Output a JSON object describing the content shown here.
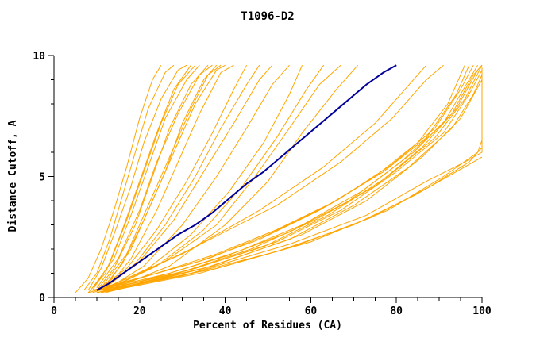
{
  "chart_data": {
    "type": "line",
    "title": "T1096-D2",
    "xlabel": "Percent of Residues (CA)",
    "ylabel": "Distance Cutoff, A",
    "xlim": [
      0,
      100
    ],
    "ylim": [
      0,
      10
    ],
    "x_major_ticks": [
      0,
      20,
      40,
      60,
      80,
      100
    ],
    "x_minor_step": 5,
    "y_major_ticks": [
      0,
      5,
      10
    ],
    "y_minor_step": 1,
    "grid": false,
    "legend": "none",
    "palette": {
      "orange": "#FFA500",
      "blue": "#000099",
      "axis": "#000000"
    },
    "series": [
      {
        "color": "orange",
        "points": [
          [
            5,
            0.2
          ],
          [
            8,
            0.8
          ],
          [
            11,
            2.0
          ],
          [
            14,
            3.6
          ],
          [
            17,
            5.4
          ],
          [
            20,
            7.4
          ],
          [
            23,
            9.0
          ],
          [
            25,
            9.6
          ]
        ]
      },
      {
        "color": "orange",
        "points": [
          [
            7,
            0.3
          ],
          [
            10,
            1.0
          ],
          [
            13,
            2.4
          ],
          [
            16,
            4.2
          ],
          [
            19,
            6.0
          ],
          [
            22,
            7.8
          ],
          [
            26,
            9.3
          ],
          [
            28,
            9.6
          ]
        ]
      },
      {
        "color": "orange",
        "points": [
          [
            8,
            0.3
          ],
          [
            11,
            1.2
          ],
          [
            14,
            2.6
          ],
          [
            18,
            4.6
          ],
          [
            21,
            6.4
          ],
          [
            25,
            8.2
          ],
          [
            29,
            9.4
          ],
          [
            31,
            9.6
          ]
        ]
      },
      {
        "color": "orange",
        "points": [
          [
            8,
            0.2
          ],
          [
            12,
            1.0
          ],
          [
            16,
            2.8
          ],
          [
            20,
            4.8
          ],
          [
            24,
            6.8
          ],
          [
            28,
            8.6
          ],
          [
            32,
            9.6
          ]
        ]
      },
      {
        "color": "orange",
        "points": [
          [
            9,
            0.3
          ],
          [
            13,
            1.4
          ],
          [
            17,
            3.2
          ],
          [
            21,
            5.2
          ],
          [
            25,
            7.2
          ],
          [
            29,
            8.8
          ],
          [
            33,
            9.6
          ]
        ]
      },
      {
        "color": "orange",
        "points": [
          [
            9,
            0.4
          ],
          [
            14,
            1.6
          ],
          [
            18,
            3.4
          ],
          [
            22,
            5.4
          ],
          [
            26,
            7.4
          ],
          [
            31,
            9.0
          ],
          [
            34,
            9.6
          ]
        ]
      },
      {
        "color": "orange",
        "points": [
          [
            10,
            0.3
          ],
          [
            14,
            1.2
          ],
          [
            19,
            3.0
          ],
          [
            23,
            5.0
          ],
          [
            27,
            7.0
          ],
          [
            32,
            8.8
          ],
          [
            36,
            9.6
          ]
        ]
      },
      {
        "color": "orange",
        "points": [
          [
            10,
            0.4
          ],
          [
            15,
            1.6
          ],
          [
            20,
            3.6
          ],
          [
            24,
            5.6
          ],
          [
            29,
            7.6
          ],
          [
            34,
            9.2
          ],
          [
            37,
            9.6
          ]
        ]
      },
      {
        "color": "orange",
        "points": [
          [
            11,
            0.3
          ],
          [
            16,
            1.4
          ],
          [
            21,
            3.2
          ],
          [
            26,
            5.2
          ],
          [
            30,
            7.2
          ],
          [
            35,
            9.0
          ],
          [
            38,
            9.6
          ]
        ]
      },
      {
        "color": "orange",
        "points": [
          [
            11,
            0.4
          ],
          [
            17,
            1.8
          ],
          [
            22,
            3.8
          ],
          [
            27,
            5.8
          ],
          [
            32,
            7.8
          ],
          [
            36,
            9.2
          ],
          [
            39,
            9.6
          ]
        ]
      },
      {
        "color": "orange",
        "points": [
          [
            12,
            0.4
          ],
          [
            18,
            2.0
          ],
          [
            23,
            4.0
          ],
          [
            28,
            6.0
          ],
          [
            33,
            8.0
          ],
          [
            38,
            9.4
          ],
          [
            40,
            9.6
          ]
        ]
      },
      {
        "color": "orange",
        "points": [
          [
            12,
            0.3
          ],
          [
            18,
            1.6
          ],
          [
            24,
            3.6
          ],
          [
            29,
            5.6
          ],
          [
            34,
            7.6
          ],
          [
            39,
            9.3
          ],
          [
            42,
            9.6
          ]
        ]
      },
      {
        "color": "orange",
        "points": [
          [
            10,
            0.3
          ],
          [
            17,
            1.2
          ],
          [
            24,
            2.8
          ],
          [
            31,
            4.8
          ],
          [
            37,
            6.8
          ],
          [
            42,
            8.6
          ],
          [
            45,
            9.6
          ]
        ]
      },
      {
        "color": "orange",
        "points": [
          [
            11,
            0.3
          ],
          [
            19,
            1.4
          ],
          [
            26,
            3.0
          ],
          [
            33,
            5.0
          ],
          [
            39,
            7.0
          ],
          [
            45,
            8.8
          ],
          [
            48,
            9.6
          ]
        ]
      },
      {
        "color": "orange",
        "points": [
          [
            12,
            0.4
          ],
          [
            20,
            1.5
          ],
          [
            28,
            3.2
          ],
          [
            35,
            5.2
          ],
          [
            42,
            7.2
          ],
          [
            48,
            9.0
          ],
          [
            51,
            9.6
          ]
        ]
      },
      {
        "color": "orange",
        "points": [
          [
            12,
            0.3
          ],
          [
            21,
            1.3
          ],
          [
            30,
            3.0
          ],
          [
            38,
            5.0
          ],
          [
            45,
            7.0
          ],
          [
            51,
            8.8
          ],
          [
            55,
            9.6
          ]
        ]
      },
      {
        "color": "orange",
        "points": [
          [
            11,
            0.3
          ],
          [
            22,
            1.2
          ],
          [
            32,
            2.6
          ],
          [
            41,
            4.4
          ],
          [
            49,
            6.4
          ],
          [
            55,
            8.4
          ],
          [
            58,
            9.6
          ]
        ]
      },
      {
        "color": "orange",
        "points": [
          [
            12,
            0.3
          ],
          [
            24,
            1.3
          ],
          [
            35,
            2.8
          ],
          [
            44,
            4.6
          ],
          [
            52,
            6.6
          ],
          [
            59,
            8.6
          ],
          [
            63,
            9.6
          ]
        ]
      },
      {
        "color": "orange",
        "points": [
          [
            12,
            0.4
          ],
          [
            26,
            1.5
          ],
          [
            38,
            3.0
          ],
          [
            47,
            5.0
          ],
          [
            55,
            7.0
          ],
          [
            62,
            8.8
          ],
          [
            67,
            9.6
          ]
        ]
      },
      {
        "color": "orange",
        "points": [
          [
            13,
            0.3
          ],
          [
            27,
            1.3
          ],
          [
            40,
            3.0
          ],
          [
            50,
            4.8
          ],
          [
            58,
            6.8
          ],
          [
            66,
            8.6
          ],
          [
            71,
            9.6
          ]
        ]
      },
      {
        "color": "orange",
        "points": [
          [
            12,
            0.4
          ],
          [
            30,
            1.8
          ],
          [
            48,
            3.6
          ],
          [
            63,
            5.4
          ],
          [
            75,
            7.2
          ],
          [
            83,
            8.8
          ],
          [
            87,
            9.6
          ]
        ]
      },
      {
        "color": "orange",
        "points": [
          [
            13,
            0.4
          ],
          [
            32,
            2.0
          ],
          [
            52,
            3.8
          ],
          [
            67,
            5.6
          ],
          [
            79,
            7.4
          ],
          [
            87,
            9.0
          ],
          [
            91,
            9.6
          ]
        ]
      },
      {
        "color": "orange",
        "points": [
          [
            8,
            0.2
          ],
          [
            20,
            0.8
          ],
          [
            34,
            1.5
          ],
          [
            48,
            2.4
          ],
          [
            62,
            3.6
          ],
          [
            75,
            5.0
          ],
          [
            85,
            6.4
          ],
          [
            92,
            8.0
          ],
          [
            96,
            9.6
          ]
        ]
      },
      {
        "color": "orange",
        "points": [
          [
            9,
            0.2
          ],
          [
            22,
            0.9
          ],
          [
            36,
            1.6
          ],
          [
            50,
            2.6
          ],
          [
            64,
            3.8
          ],
          [
            77,
            5.2
          ],
          [
            87,
            6.6
          ],
          [
            94,
            8.4
          ],
          [
            97,
            9.6
          ]
        ]
      },
      {
        "color": "orange",
        "points": [
          [
            9,
            0.3
          ],
          [
            24,
            1.0
          ],
          [
            38,
            1.8
          ],
          [
            52,
            2.8
          ],
          [
            66,
            4.0
          ],
          [
            79,
            5.5
          ],
          [
            89,
            7.0
          ],
          [
            95,
            8.6
          ],
          [
            98,
            9.6
          ]
        ]
      },
      {
        "color": "orange",
        "points": [
          [
            10,
            0.2
          ],
          [
            25,
            0.9
          ],
          [
            40,
            1.7
          ],
          [
            55,
            2.7
          ],
          [
            69,
            4.0
          ],
          [
            81,
            5.6
          ],
          [
            91,
            7.2
          ],
          [
            97,
            9.0
          ],
          [
            99,
            9.6
          ]
        ]
      },
      {
        "color": "orange",
        "points": [
          [
            10,
            0.3
          ],
          [
            27,
            1.0
          ],
          [
            43,
            1.9
          ],
          [
            58,
            3.0
          ],
          [
            72,
            4.4
          ],
          [
            84,
            6.0
          ],
          [
            93,
            7.6
          ],
          [
            98,
            9.2
          ],
          [
            100,
            9.6
          ]
        ]
      },
      {
        "color": "orange",
        "points": [
          [
            11,
            0.2
          ],
          [
            29,
            1.0
          ],
          [
            46,
            2.0
          ],
          [
            61,
            3.2
          ],
          [
            75,
            4.6
          ],
          [
            86,
            6.2
          ],
          [
            94,
            7.8
          ],
          [
            99,
            9.4
          ],
          [
            100,
            9.6
          ]
        ]
      },
      {
        "color": "orange",
        "points": [
          [
            11,
            0.3
          ],
          [
            31,
            1.1
          ],
          [
            49,
            2.1
          ],
          [
            64,
            3.4
          ],
          [
            78,
            5.0
          ],
          [
            89,
            6.6
          ],
          [
            96,
            8.2
          ],
          [
            100,
            9.6
          ]
        ]
      },
      {
        "color": "orange",
        "points": [
          [
            12,
            0.3
          ],
          [
            33,
            1.2
          ],
          [
            52,
            2.3
          ],
          [
            67,
            3.6
          ],
          [
            80,
            5.2
          ],
          [
            91,
            6.8
          ],
          [
            97,
            8.4
          ],
          [
            100,
            9.4
          ]
        ]
      },
      {
        "color": "orange",
        "points": [
          [
            12,
            0.2
          ],
          [
            35,
            1.2
          ],
          [
            55,
            2.4
          ],
          [
            70,
            3.8
          ],
          [
            83,
            5.4
          ],
          [
            93,
            7.0
          ],
          [
            98,
            8.4
          ],
          [
            100,
            9.2
          ]
        ]
      },
      {
        "color": "orange",
        "points": [
          [
            13,
            0.3
          ],
          [
            37,
            1.3
          ],
          [
            58,
            2.6
          ],
          [
            73,
            4.0
          ],
          [
            86,
            5.8
          ],
          [
            95,
            7.4
          ],
          [
            100,
            9.0
          ]
        ]
      },
      {
        "color": "orange",
        "points": [
          [
            10,
            0.2
          ],
          [
            30,
            0.9
          ],
          [
            52,
            1.9
          ],
          [
            70,
            3.0
          ],
          [
            84,
            4.2
          ],
          [
            94,
            5.2
          ],
          [
            100,
            5.8
          ]
        ]
      },
      {
        "color": "orange",
        "points": [
          [
            11,
            0.2
          ],
          [
            34,
            1.0
          ],
          [
            56,
            2.1
          ],
          [
            74,
            3.3
          ],
          [
            88,
            4.6
          ],
          [
            97,
            5.6
          ],
          [
            100,
            6.2
          ]
        ]
      },
      {
        "color": "orange",
        "points": [
          [
            12,
            0.3
          ],
          [
            38,
            1.2
          ],
          [
            60,
            2.3
          ],
          [
            78,
            3.6
          ],
          [
            91,
            5.0
          ],
          [
            99,
            6.0
          ],
          [
            100,
            6.5
          ]
        ]
      },
      {
        "color": "orange",
        "points": [
          [
            10,
            0.2
          ],
          [
            32,
            1.0
          ],
          [
            55,
            2.2
          ],
          [
            73,
            3.4
          ],
          [
            87,
            4.8
          ],
          [
            96,
            5.6
          ],
          [
            100,
            6.0
          ],
          [
            100,
            9.5
          ]
        ]
      },
      {
        "color": "blue",
        "points": [
          [
            10,
            0.3
          ],
          [
            13,
            0.6
          ],
          [
            17,
            1.1
          ],
          [
            21,
            1.6
          ],
          [
            25,
            2.1
          ],
          [
            29,
            2.6
          ],
          [
            33,
            3.0
          ],
          [
            37,
            3.5
          ],
          [
            41,
            4.1
          ],
          [
            45,
            4.7
          ],
          [
            49,
            5.2
          ],
          [
            53,
            5.8
          ],
          [
            57,
            6.4
          ],
          [
            61,
            7.0
          ],
          [
            65,
            7.6
          ],
          [
            69,
            8.2
          ],
          [
            73,
            8.8
          ],
          [
            77,
            9.3
          ],
          [
            80,
            9.6
          ]
        ]
      }
    ]
  }
}
